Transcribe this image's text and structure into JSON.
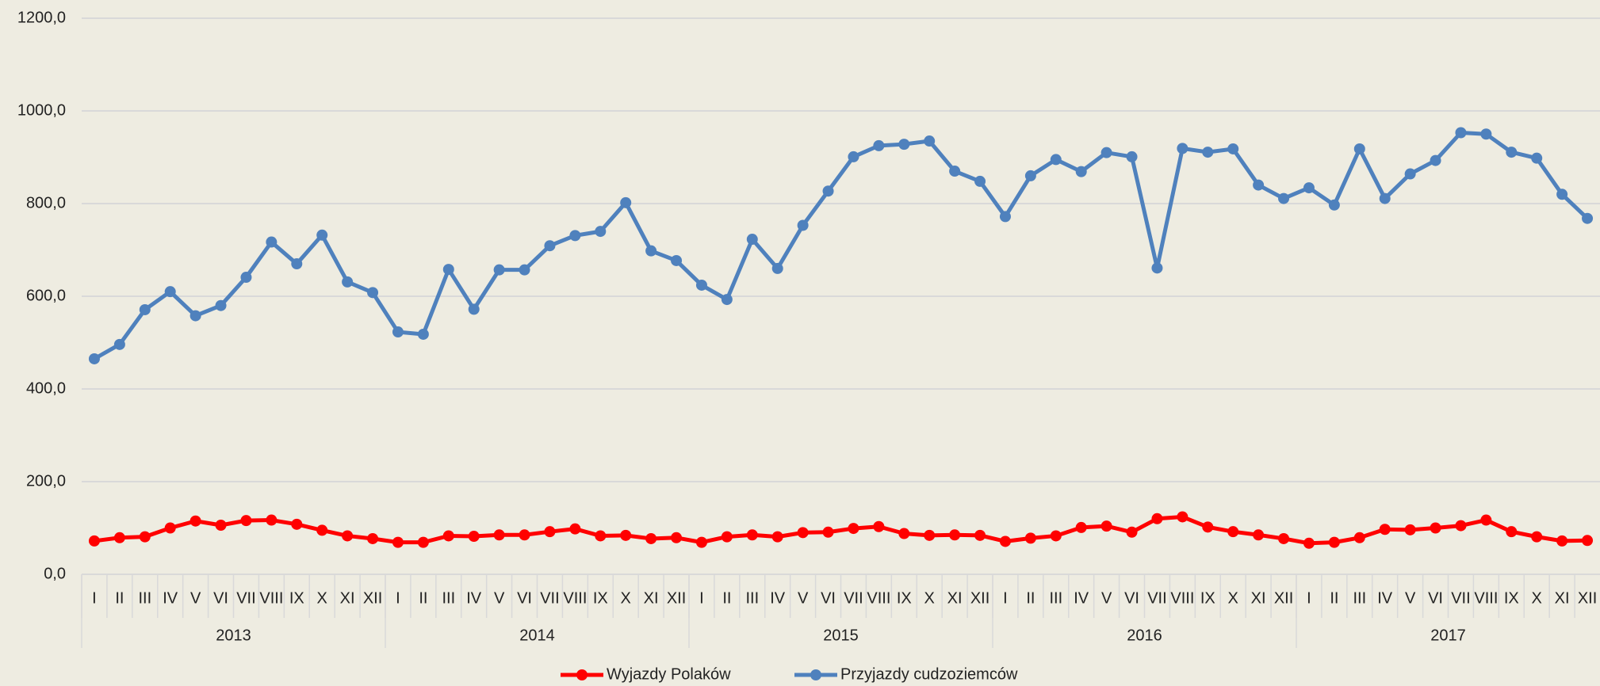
{
  "chart_data": {
    "type": "line",
    "categories": [
      "I",
      "II",
      "III",
      "IV",
      "V",
      "VI",
      "VII",
      "VIII",
      "IX",
      "X",
      "XI",
      "XII",
      "I",
      "II",
      "III",
      "IV",
      "V",
      "VI",
      "VII",
      "VIII",
      "IX",
      "X",
      "XI",
      "XII",
      "I",
      "II",
      "III",
      "IV",
      "V",
      "VI",
      "VII",
      "VIII",
      "IX",
      "X",
      "XI",
      "XII",
      "I",
      "II",
      "III",
      "IV",
      "V",
      "VI",
      "VII",
      "VIII",
      "IX",
      "X",
      "XI",
      "XII",
      "I",
      "II",
      "III",
      "IV",
      "V",
      "VI",
      "VII",
      "VIII",
      "IX",
      "X",
      "XI",
      "XII"
    ],
    "years": [
      "2013",
      "2014",
      "2015",
      "2016",
      "2017"
    ],
    "series": [
      {
        "name": "Wyjazdy Polaków",
        "color": "#ff0000",
        "values": [
          72,
          79,
          81,
          100,
          115,
          106,
          116,
          117,
          108,
          95,
          83,
          77,
          69,
          69,
          83,
          82,
          85,
          85,
          92,
          98,
          83,
          84,
          77,
          79,
          69,
          81,
          85,
          81,
          90,
          91,
          99,
          103,
          88,
          84,
          85,
          84,
          71,
          78,
          83,
          101,
          104,
          91,
          120,
          124,
          102,
          92,
          85,
          77,
          67,
          69,
          79,
          97,
          96,
          100,
          105,
          117,
          92,
          81,
          72,
          73
        ]
      },
      {
        "name": "Przyjazdy cudzoziemców",
        "color": "#4f81bd",
        "values": [
          465,
          496,
          571,
          610,
          558,
          580,
          641,
          717,
          670,
          732,
          631,
          608,
          523,
          518,
          658,
          572,
          657,
          657,
          709,
          731,
          740,
          802,
          698,
          677,
          624,
          593,
          723,
          660,
          753,
          827,
          901,
          925,
          928,
          935,
          870,
          848,
          772,
          860,
          895,
          869,
          910,
          901,
          661,
          919,
          911,
          918,
          840,
          811,
          834,
          797,
          918,
          811,
          864,
          893,
          953,
          950,
          911,
          898,
          820,
          768
        ]
      }
    ],
    "ylim": [
      0,
      1200
    ],
    "yticks": [
      {
        "value": 0,
        "label": "0,0"
      },
      {
        "value": 200,
        "label": "200,0"
      },
      {
        "value": 400,
        "label": "400,0"
      },
      {
        "value": 600,
        "label": "600,0"
      },
      {
        "value": 800,
        "label": "800,0"
      },
      {
        "value": 1000,
        "label": "1000,0"
      },
      {
        "value": 1200,
        "label": "1200,0"
      }
    ],
    "grid": true,
    "legend": "bottom"
  }
}
